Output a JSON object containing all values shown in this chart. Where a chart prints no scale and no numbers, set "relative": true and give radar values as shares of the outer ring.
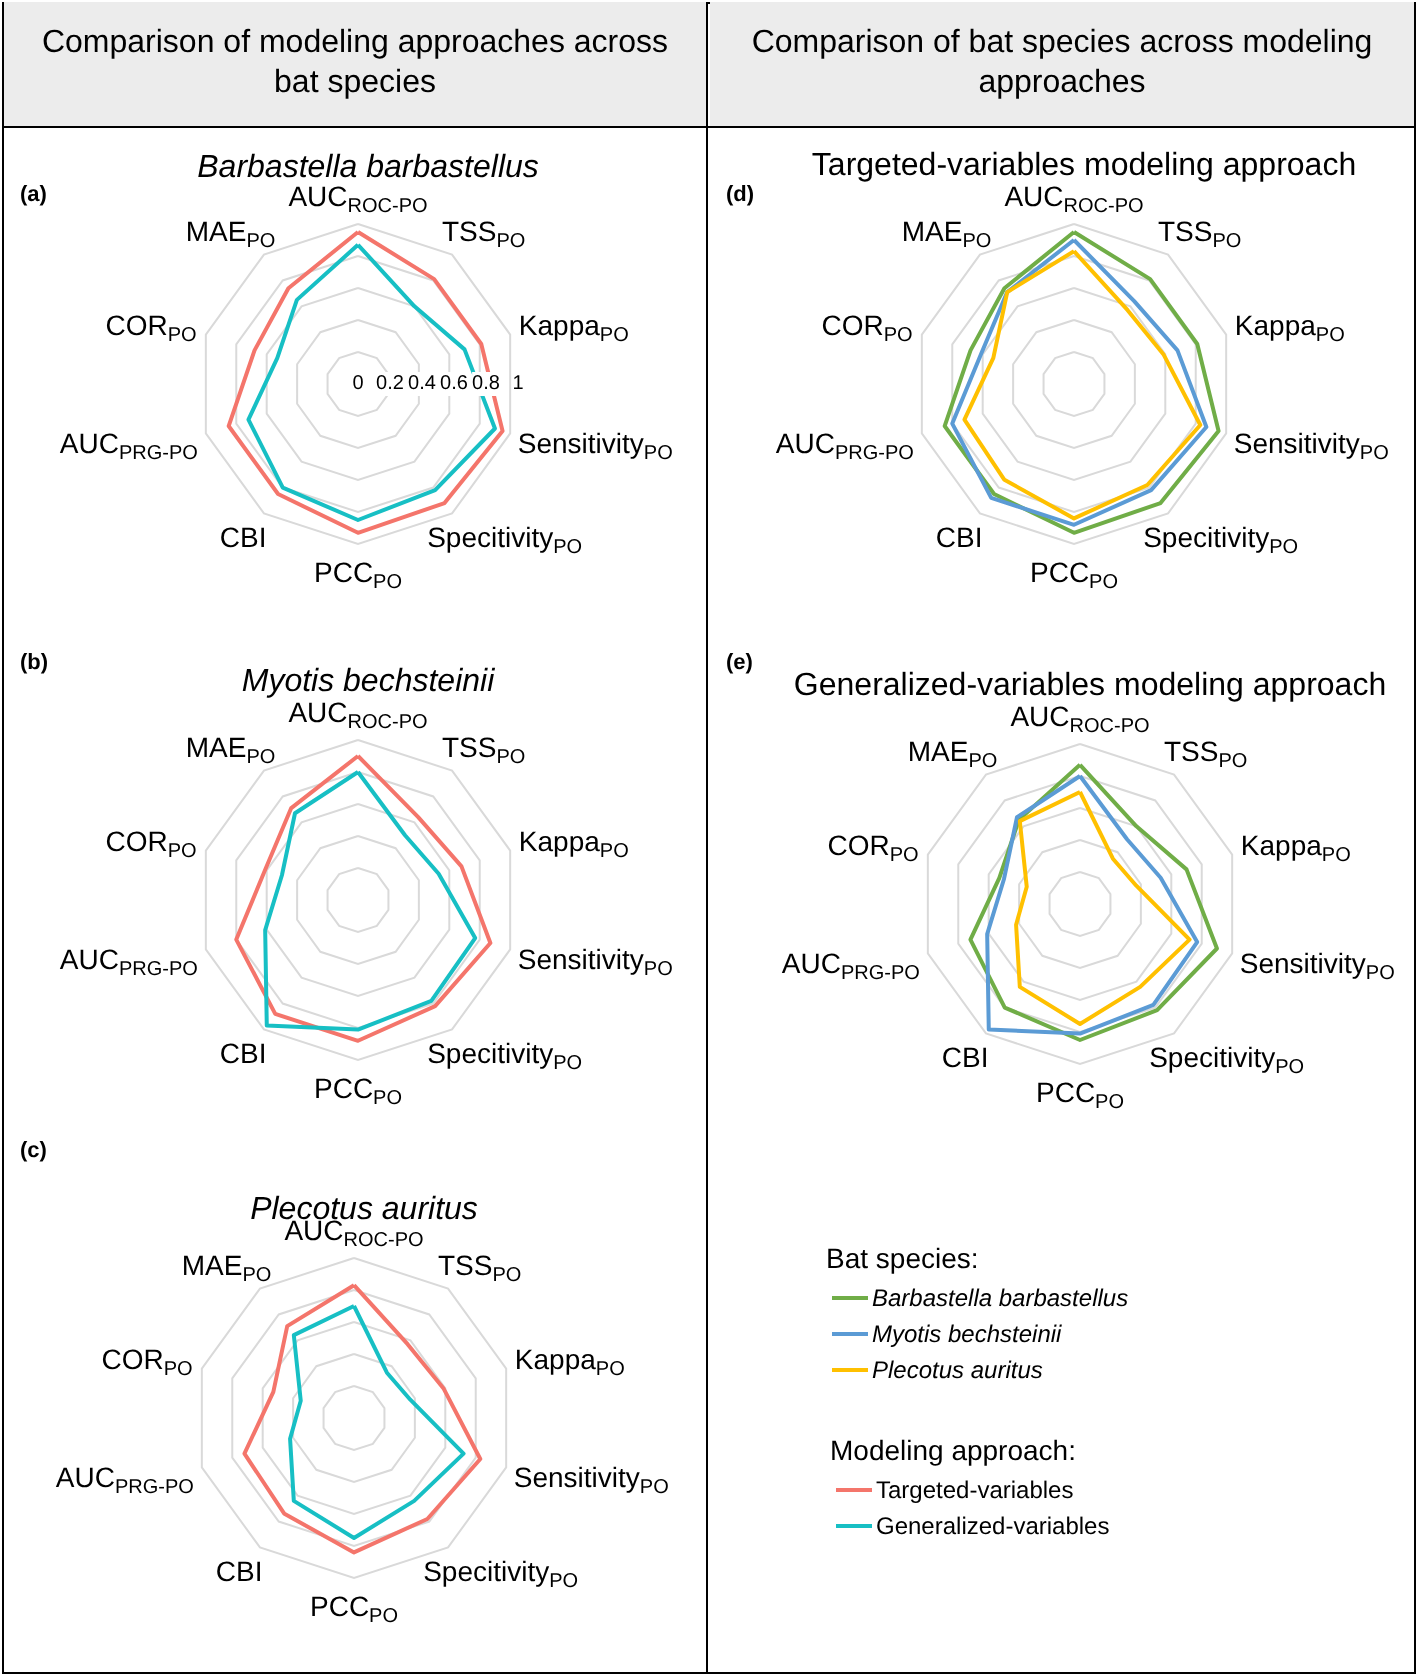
{
  "chart_data": [
    {
      "type": "radar",
      "title": "Barbastella barbastellus",
      "annotations": [
        "Comparison of modeling approaches across bat species",
        "(a)"
      ],
      "categories": [
        "AUC$_{ROC-PO}$",
        "TSS$_{PO}$",
        "Kappa$_{PO}$",
        "Sensitivity$_{PO}$",
        "Specitivity$_{PO}$",
        "PCC$_{PO}$",
        "CBI",
        "AUC$_{PRG-PO}$",
        "COR$_{PO}$",
        "MAE$_{PO}$"
      ],
      "ylim": [
        0,
        1
      ],
      "yticks": [
        0,
        0.2,
        0.4,
        0.6,
        0.8,
        1
      ],
      "grid": true,
      "marker": "none",
      "series": [
        {
          "color": "#f4756b",
          "values": [
            0.95,
            0.81,
            0.81,
            0.95,
            0.92,
            0.93,
            0.85,
            0.85,
            0.68,
            0.74
          ]
        },
        {
          "color": "#17bfc4",
          "values": [
            0.87,
            0.6,
            0.7,
            0.9,
            0.82,
            0.85,
            0.8,
            0.72,
            0.53,
            0.65
          ]
        }
      ]
    },
    {
      "type": "radar",
      "title": "Myotis bechsteinii",
      "annotations": [
        "(b)"
      ],
      "categories": [
        "AUC$_{ROC-PO}$",
        "TSS$_{PO}$",
        "Kappa$_{PO}$",
        "Sensitivity$_{PO}$",
        "Specitivity$_{PO}$",
        "PCC$_{PO}$",
        "CBI",
        "AUC$_{PRG-PO}$",
        "COR$_{PO}$",
        "MAE$_{PO}$"
      ],
      "relative": true,
      "grid": true,
      "marker": "none",
      "series": [
        {
          "color": "#f4756b",
          "values": [
            0.9,
            0.64,
            0.68,
            0.87,
            0.82,
            0.88,
            0.88,
            0.8,
            0.61,
            0.71
          ]
        },
        {
          "color": "#17bfc4",
          "values": [
            0.8,
            0.5,
            0.53,
            0.77,
            0.78,
            0.81,
            0.97,
            0.61,
            0.5,
            0.67
          ]
        }
      ]
    },
    {
      "type": "radar",
      "title": "Plecotus auritus",
      "annotations": [
        "(c)"
      ],
      "legend_title": "Modeling approach:",
      "legend": "bottom right",
      "categories": [
        "AUC$_{ROC-PO}$",
        "TSS$_{PO}$",
        "Kappa$_{PO}$",
        "Sensitivity$_{PO}$",
        "Specitivity$_{PO}$",
        "PCC$_{PO}$",
        "CBI",
        "AUC$_{PRG-PO}$",
        "COR$_{PO}$",
        "MAE$_{PO}$"
      ],
      "relative": true,
      "grid": true,
      "marker": "none",
      "series": [
        {
          "name": "Targeted-variables",
          "color": "#f4756b",
          "values": [
            0.83,
            0.57,
            0.59,
            0.83,
            0.78,
            0.84,
            0.74,
            0.72,
            0.53,
            0.71
          ]
        },
        {
          "name": "Generalized-variables",
          "color": "#17bfc4",
          "values": [
            0.7,
            0.35,
            0.37,
            0.72,
            0.64,
            0.75,
            0.64,
            0.42,
            0.35,
            0.64
          ]
        }
      ]
    },
    {
      "type": "radar",
      "title": "Targeted-variables modeling approach",
      "annotations": [
        "Comparison of bat species across modeling approaches",
        "(d)"
      ],
      "categories": [
        "AUC$_{ROC-PO}$",
        "TSS$_{PO}$",
        "Kappa$_{PO}$",
        "Sensitivity$_{PO}$",
        "Specitivity$_{PO}$",
        "PCC$_{PO}$",
        "CBI",
        "AUC$_{PRG-PO}$",
        "COR$_{PO}$",
        "MAE$_{PO}$"
      ],
      "relative": true,
      "grid": true,
      "marker": "none",
      "series": [
        {
          "color": "#70ad47",
          "values": [
            0.95,
            0.81,
            0.81,
            0.95,
            0.92,
            0.93,
            0.85,
            0.85,
            0.68,
            0.74
          ]
        },
        {
          "color": "#5b9bd5",
          "values": [
            0.9,
            0.64,
            0.68,
            0.87,
            0.82,
            0.88,
            0.88,
            0.8,
            0.61,
            0.71
          ]
        },
        {
          "color": "#ffc000",
          "values": [
            0.83,
            0.57,
            0.59,
            0.83,
            0.78,
            0.84,
            0.74,
            0.72,
            0.53,
            0.71
          ]
        }
      ]
    },
    {
      "type": "radar",
      "title": "Generalized-variables modeling approach",
      "annotations": [
        "(e)"
      ],
      "legend_title": "Bat species:",
      "legend": "bottom",
      "categories": [
        "AUC$_{ROC-PO}$",
        "TSS$_{PO}$",
        "Kappa$_{PO}$",
        "Sensitivity$_{PO}$",
        "Specitivity$_{PO}$",
        "PCC$_{PO}$",
        "CBI",
        "AUC$_{PRG-PO}$",
        "COR$_{PO}$",
        "MAE$_{PO}$"
      ],
      "relative": true,
      "grid": true,
      "marker": "none",
      "series": [
        {
          "name": "Barbastella barbastellus",
          "color": "#70ad47",
          "values": [
            0.87,
            0.6,
            0.7,
            0.9,
            0.82,
            0.85,
            0.8,
            0.72,
            0.53,
            0.65
          ]
        },
        {
          "name": "Myotis bechsteinii",
          "color": "#5b9bd5",
          "values": [
            0.8,
            0.5,
            0.53,
            0.77,
            0.78,
            0.81,
            0.97,
            0.61,
            0.5,
            0.67
          ]
        },
        {
          "name": "Plecotus auritus",
          "color": "#ffc000",
          "values": [
            0.7,
            0.35,
            0.37,
            0.72,
            0.64,
            0.75,
            0.64,
            0.42,
            0.35,
            0.64
          ]
        }
      ]
    }
  ]
}
